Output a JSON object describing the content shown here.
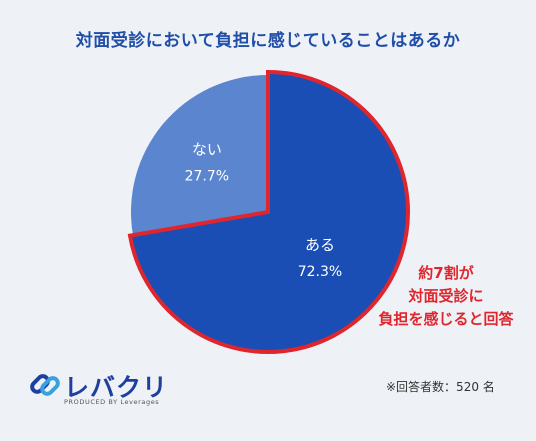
{
  "chart_data": {
    "type": "pie",
    "title": "対面受診において負担に感じていることはあるか",
    "slices": [
      {
        "label": "ある",
        "value": 72.3,
        "value_label": "72.3%",
        "color": "#1a4eb5"
      },
      {
        "label": "ない",
        "value": 27.7,
        "value_label": "27.7%",
        "color": "#5c85cf"
      }
    ],
    "highlight": {
      "slice": "ある",
      "border_color": "#e0262d"
    }
  },
  "callout": {
    "lines": [
      "約7割が",
      "対面受診に",
      "負担を感じると回答"
    ],
    "color": "#e0262d"
  },
  "logo": {
    "name": "レバクリ",
    "sub": "PRODUCED BY Leverages"
  },
  "footnote": "※回答者数：520 名"
}
